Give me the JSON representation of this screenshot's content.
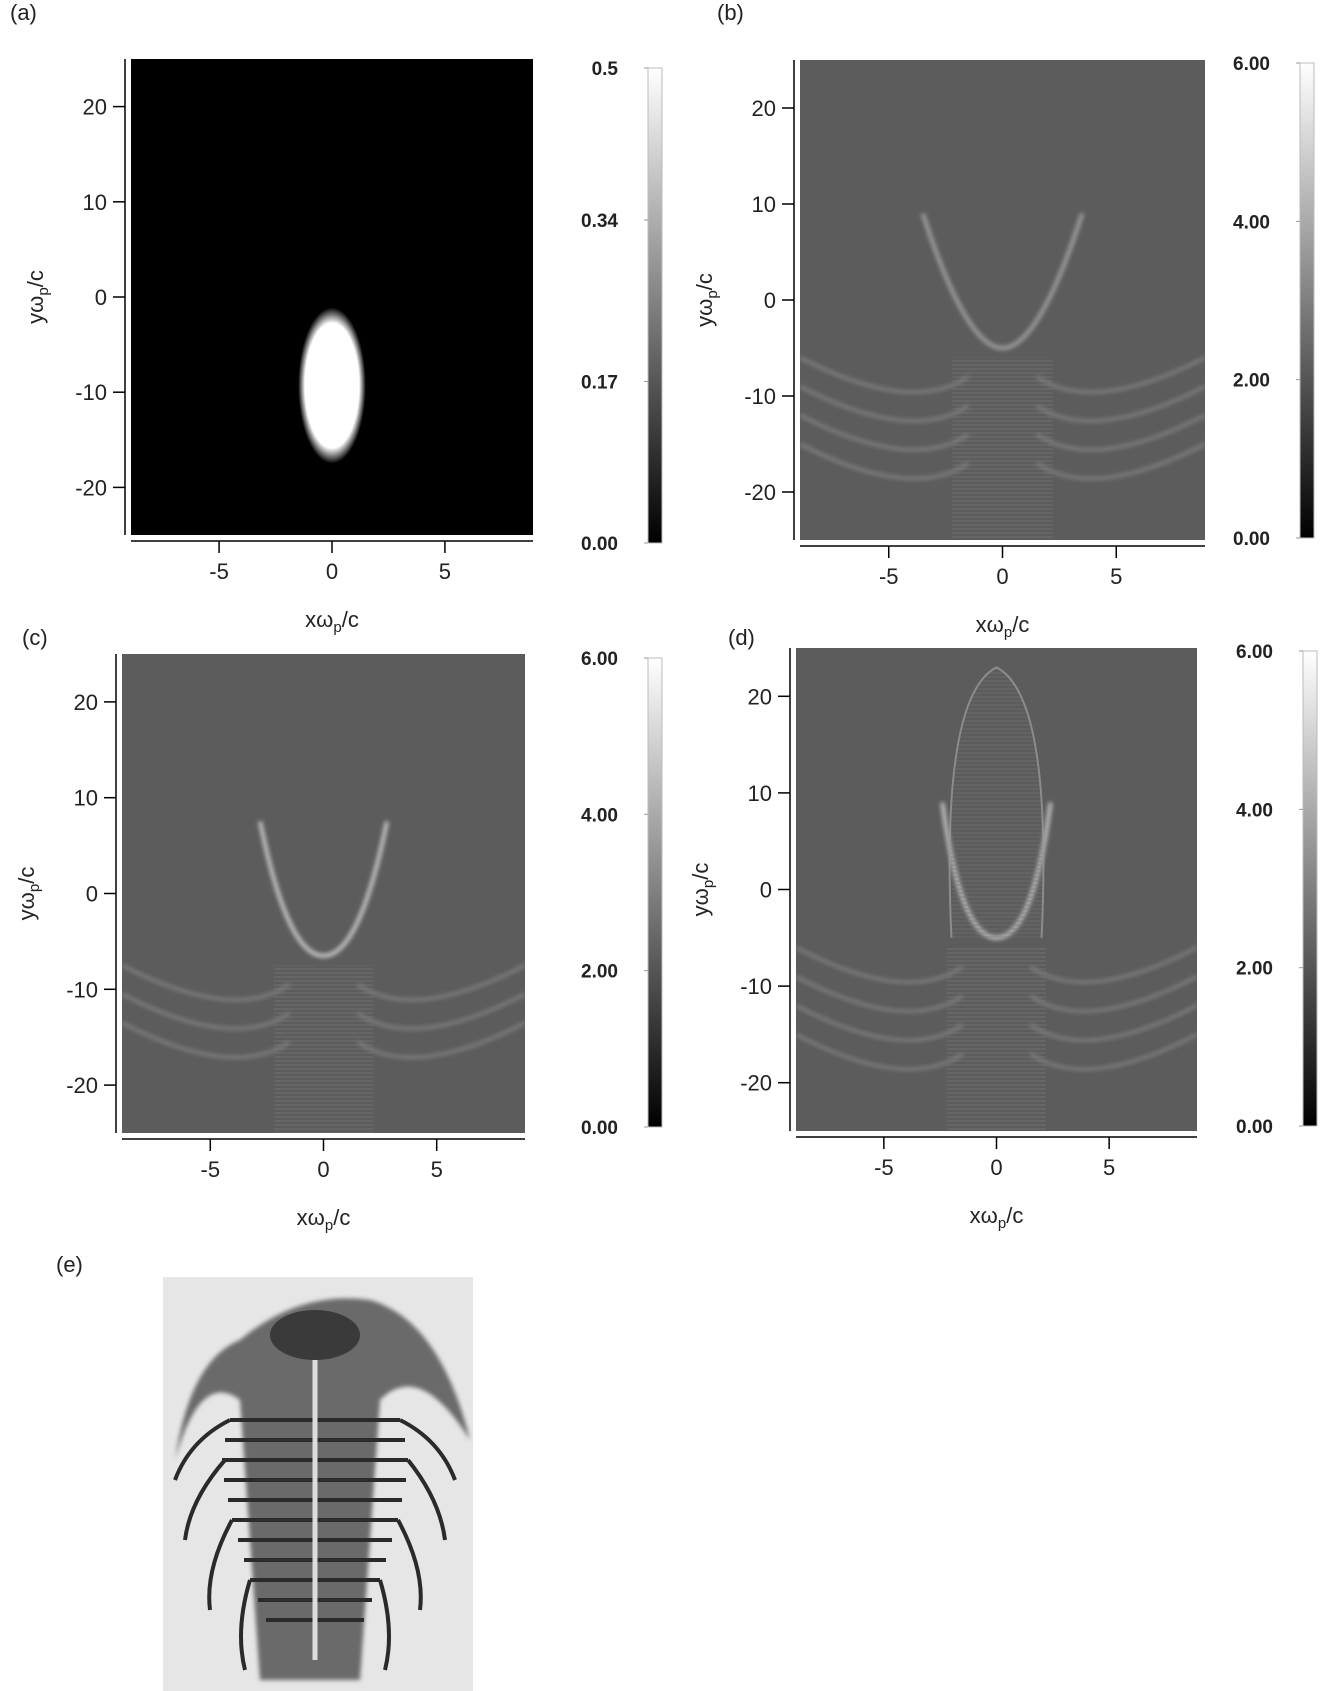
{
  "chart_data": [
    {
      "type": "heatmap",
      "label": "(a)",
      "xlabel": [
        "xω",
        "p",
        "/c"
      ],
      "ylabel": [
        "yω",
        "p",
        "/c"
      ],
      "xlim": [
        -8.9,
        8.9
      ],
      "ylim": [
        -25,
        25
      ],
      "xticks": [
        -5,
        0,
        5
      ],
      "yticks": [
        -20,
        -10,
        0,
        10,
        20
      ],
      "clim": [
        0,
        0.5
      ],
      "cticks": [
        {
          "value": 0,
          "label": "0.00"
        },
        0.17,
        0.34,
        0.5
      ]
    },
    {
      "type": "heatmap",
      "label": "(b)",
      "xlabel": [
        "xω",
        "p",
        "/c"
      ],
      "ylabel": [
        "yω",
        "p",
        "/c"
      ],
      "xlim": [
        -8.9,
        8.9
      ],
      "ylim": [
        -25,
        25
      ],
      "xticks": [
        -5,
        0,
        5
      ],
      "yticks": [
        -20,
        -10,
        0,
        10,
        20
      ],
      "clim": [
        0,
        6
      ],
      "cticks": [
        {
          "value": 0,
          "label": "0.00"
        },
        {
          "value": 2,
          "label": "2.00"
        },
        {
          "value": 4,
          "label": "4.00"
        },
        {
          "value": 6,
          "label": "6.00"
        }
      ]
    },
    {
      "type": "heatmap",
      "label": "(c)",
      "xlabel": [
        "xω",
        "p",
        "/c"
      ],
      "ylabel": [
        "yω",
        "p",
        "/c"
      ],
      "xlim": [
        -8.9,
        8.9
      ],
      "ylim": [
        -25,
        25
      ],
      "xticks": [
        -5,
        0,
        5
      ],
      "yticks": [
        -20,
        -10,
        0,
        10,
        20
      ],
      "clim": [
        0,
        6
      ],
      "cticks": [
        {
          "value": 0,
          "label": "0.00"
        },
        {
          "value": 2,
          "label": "2.00"
        },
        {
          "value": 4,
          "label": "4.00"
        },
        {
          "value": 6,
          "label": "6.00"
        }
      ]
    },
    {
      "type": "heatmap",
      "label": "(d)",
      "xlabel": [
        "xω",
        "p",
        "/c"
      ],
      "ylabel": [
        "yω",
        "p",
        "/c"
      ],
      "xlim": [
        -8.9,
        8.9
      ],
      "ylim": [
        -25,
        25
      ],
      "xticks": [
        -5,
        0,
        5
      ],
      "yticks": [
        -20,
        -10,
        0,
        10,
        20
      ],
      "clim": [
        0,
        6
      ],
      "cticks": [
        {
          "value": 0,
          "label": "0.00"
        },
        {
          "value": 2,
          "label": "2.00"
        },
        {
          "value": 4,
          "label": "4.00"
        },
        {
          "value": 6,
          "label": "6.00"
        }
      ]
    }
  ],
  "photo": {
    "label": "(e)"
  }
}
